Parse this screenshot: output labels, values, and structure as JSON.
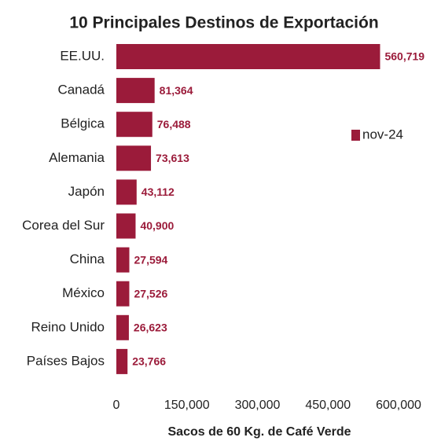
{
  "chart_data": {
    "type": "bar",
    "orientation": "horizontal",
    "title": "10 Principales Destinos de Exportación",
    "x_label": "Sacos de 60 Kg. de Café Verde",
    "categories": [
      "EE.UU.",
      "Canadá",
      "Bélgica",
      "Alemania",
      "Japón",
      "Corea del Sur",
      "China",
      "México",
      "Reino Unido",
      "Países Bajos"
    ],
    "series": [
      {
        "name": "nov-24",
        "color": "#9b1b3a",
        "values": [
          560719,
          81364,
          76488,
          73613,
          43112,
          40900,
          27594,
          27526,
          26623,
          23766
        ],
        "value_labels": [
          "560,719",
          "81,364",
          "76,488",
          "73,613",
          "43,112",
          "40,900",
          "27,594",
          "27,526",
          "26,623",
          "23,766"
        ]
      }
    ],
    "xlim": [
      0,
      600000
    ],
    "xticks": [
      0,
      {
        "value": 150000,
        "label": "150,000"
      },
      {
        "value": 300000,
        "label": "300,000"
      },
      {
        "value": 450000,
        "label": "450,000"
      },
      {
        "value": 600000,
        "label": "600,000"
      }
    ],
    "legend": "right"
  }
}
